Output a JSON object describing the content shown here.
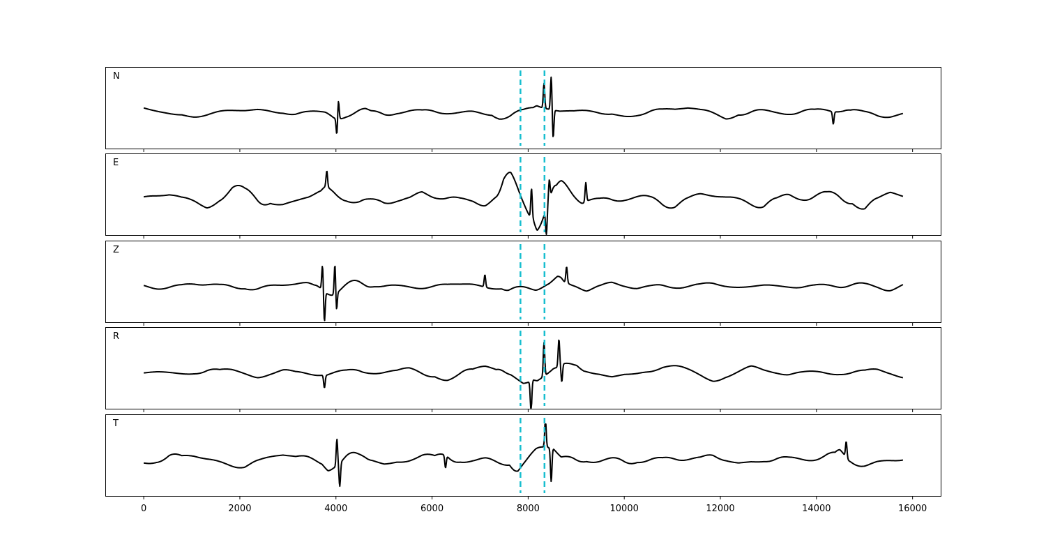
{
  "chart_data": {
    "type": "line",
    "x_range": [
      0,
      15800
    ],
    "xlim": [
      -800,
      16600
    ],
    "x_ticks": [
      0,
      2000,
      4000,
      6000,
      8000,
      10000,
      12000,
      14000,
      16000
    ],
    "tick_labels": [
      "0",
      "2000",
      "4000",
      "6000",
      "8000",
      "10000",
      "12000",
      "14000",
      "16000"
    ],
    "markers": {
      "color": "#17becf",
      "style": "dashed",
      "x": [
        7840,
        8340
      ]
    },
    "line_color": "#000000",
    "panels": [
      {
        "label": "N",
        "seed": 11,
        "envelope": [
          {
            "x0": 0,
            "x1": 15800,
            "amp": 0.12
          },
          {
            "x0": 3650,
            "x1": 4800,
            "amp": 0.22
          },
          {
            "x0": 7200,
            "x1": 8700,
            "amp": 0.28
          },
          {
            "x0": 8000,
            "x1": 8600,
            "amp": 0.42
          },
          {
            "x0": 14300,
            "x1": 14800,
            "amp": 0.2
          }
        ],
        "spikes": [
          {
            "x": 4050,
            "amp": 0.55
          },
          {
            "x": 4020,
            "amp": -0.5
          },
          {
            "x": 8480,
            "amp": 0.95
          },
          {
            "x": 8520,
            "amp": -0.8
          },
          {
            "x": 8330,
            "amp": 0.7
          },
          {
            "x": 14350,
            "amp": -0.35
          }
        ]
      },
      {
        "label": "E",
        "seed": 23,
        "envelope": [
          {
            "x0": 0,
            "x1": 15800,
            "amp": 0.15
          },
          {
            "x0": 3600,
            "x1": 4700,
            "amp": 0.25
          },
          {
            "x0": 7300,
            "x1": 9300,
            "amp": 0.35
          },
          {
            "x0": 8000,
            "x1": 8700,
            "amp": 0.5
          }
        ],
        "spikes": [
          {
            "x": 8070,
            "amp": 0.85
          },
          {
            "x": 8380,
            "amp": -0.75
          },
          {
            "x": 8440,
            "amp": 0.55
          },
          {
            "x": 9200,
            "amp": 0.55
          },
          {
            "x": 3810,
            "amp": 0.45
          }
        ]
      },
      {
        "label": "Z",
        "seed": 37,
        "envelope": [
          {
            "x0": 0,
            "x1": 15800,
            "amp": 0.08
          },
          {
            "x0": 3550,
            "x1": 4800,
            "amp": 0.3
          },
          {
            "x0": 7400,
            "x1": 8800,
            "amp": 0.18
          }
        ],
        "spikes": [
          {
            "x": 3760,
            "amp": -0.85
          },
          {
            "x": 3720,
            "amp": 0.7
          },
          {
            "x": 3980,
            "amp": 0.9
          },
          {
            "x": 4010,
            "amp": -0.55
          },
          {
            "x": 8800,
            "amp": 0.45
          },
          {
            "x": 7100,
            "amp": 0.35
          }
        ]
      },
      {
        "label": "R",
        "seed": 53,
        "envelope": [
          {
            "x0": 0,
            "x1": 15800,
            "amp": 0.14
          },
          {
            "x0": 3600,
            "x1": 4700,
            "amp": 0.2
          },
          {
            "x0": 7300,
            "x1": 9200,
            "amp": 0.35
          },
          {
            "x0": 8000,
            "x1": 8700,
            "amp": 0.5
          }
        ],
        "spikes": [
          {
            "x": 8060,
            "amp": -0.9
          },
          {
            "x": 8330,
            "amp": 0.95
          },
          {
            "x": 8640,
            "amp": 0.75
          },
          {
            "x": 8700,
            "amp": -0.5
          },
          {
            "x": 3760,
            "amp": -0.35
          }
        ]
      },
      {
        "label": "T",
        "seed": 71,
        "envelope": [
          {
            "x0": 0,
            "x1": 15800,
            "amp": 0.12
          },
          {
            "x0": 3650,
            "x1": 4800,
            "amp": 0.25
          },
          {
            "x0": 7600,
            "x1": 8700,
            "amp": 0.4
          },
          {
            "x0": 14300,
            "x1": 14800,
            "amp": 0.2
          }
        ],
        "spikes": [
          {
            "x": 4020,
            "amp": 0.75
          },
          {
            "x": 4080,
            "amp": -0.65
          },
          {
            "x": 8480,
            "amp": -0.95
          },
          {
            "x": 8360,
            "amp": 0.8
          },
          {
            "x": 14620,
            "amp": 0.45
          },
          {
            "x": 6280,
            "amp": -0.35
          }
        ]
      }
    ]
  }
}
